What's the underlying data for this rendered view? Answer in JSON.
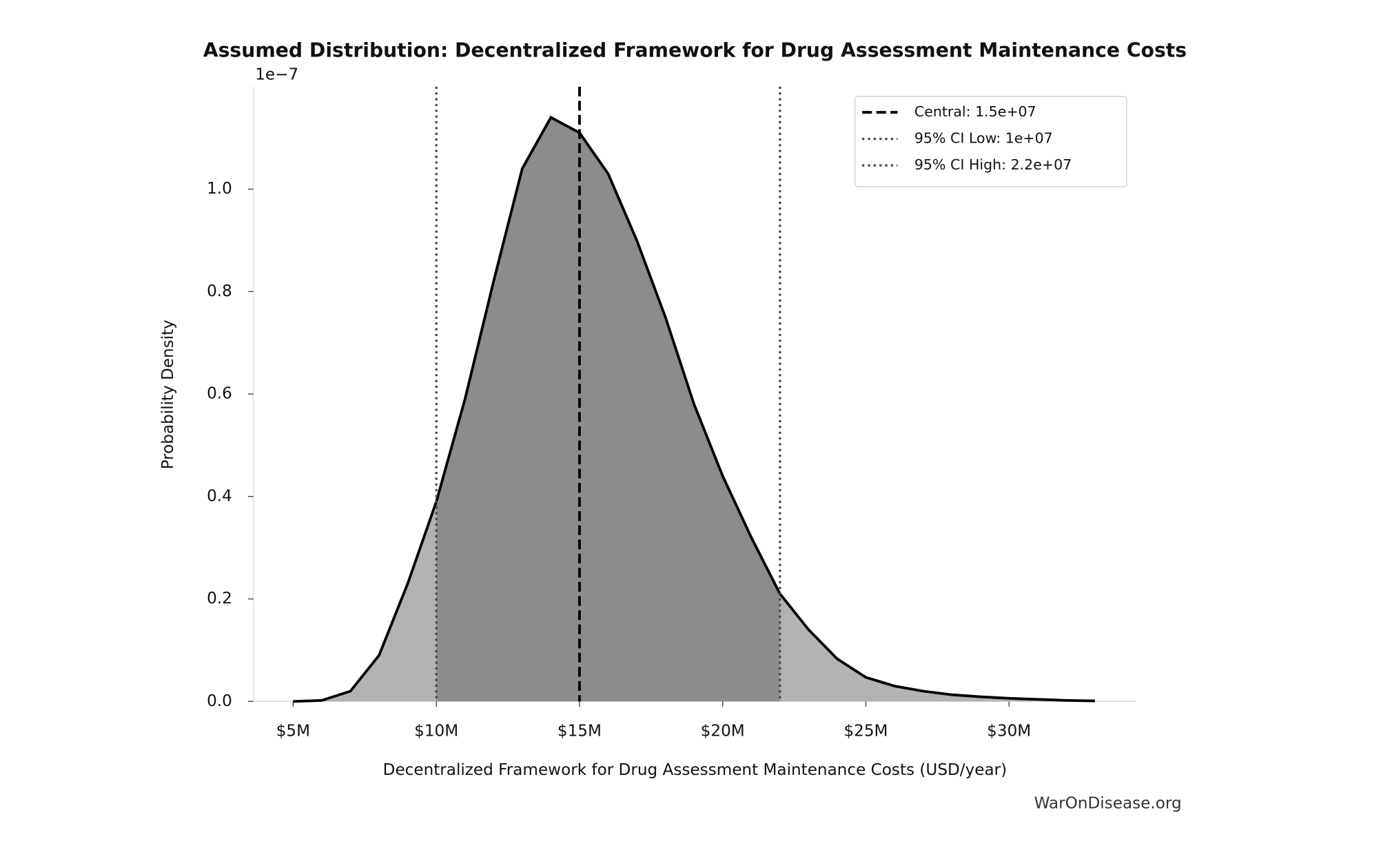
{
  "chart_data": {
    "type": "area",
    "title": "Assumed Distribution: Decentralized Framework for Drug Assessment Maintenance Costs",
    "x_label": "Decentralized Framework for Drug Assessment Maintenance Costs (USD/year)",
    "y_label": "Probability Density",
    "y_offset_label": "1e−7",
    "watermark": "WarOnDisease.org",
    "x": [
      5000000,
      6000000,
      7000000,
      8000000,
      9000000,
      10000000,
      11000000,
      12000000,
      13000000,
      14000000,
      15000000,
      16000000,
      17000000,
      18000000,
      19000000,
      20000000,
      21000000,
      22000000,
      23000000,
      24000000,
      25000000,
      26000000,
      27000000,
      28000000,
      29000000,
      30000000,
      31000000,
      32000000,
      33000000
    ],
    "values": [
      0.0,
      0.002,
      0.02,
      0.09,
      0.23,
      0.39,
      0.59,
      0.82,
      1.04,
      1.14,
      1.11,
      1.03,
      0.9,
      0.75,
      0.58,
      0.44,
      0.32,
      0.21,
      0.14,
      0.083,
      0.047,
      0.03,
      0.02,
      0.013,
      0.009,
      0.006,
      0.004,
      0.002,
      0.001
    ],
    "color": "#000000",
    "fill_color": "#b3b3b3",
    "ci_fill_color": "#8c8c8c",
    "reference_lines": [
      {
        "name": "Central: 1.5e+07",
        "value": 15000000,
        "style": "dashed",
        "color": "#000000"
      },
      {
        "name": "95% CI Low: 1e+07",
        "value": 10000000,
        "style": "dotted",
        "color": "#444444"
      },
      {
        "name": "95% CI High: 2.2e+07",
        "value": 22000000,
        "style": "dotted",
        "color": "#444444"
      }
    ],
    "xlim": [
      3610000,
      34420000
    ],
    "xticks": [
      {
        "value": 5000000,
        "label": "$5M"
      },
      {
        "value": 10000000,
        "label": "$10M"
      },
      {
        "value": 15000000,
        "label": "$15M"
      },
      {
        "value": 20000000,
        "label": "$20M"
      },
      {
        "value": 25000000,
        "label": "$25M"
      },
      {
        "value": 30000000,
        "label": "$30M"
      }
    ],
    "ylim": [
      0,
      1.2
    ],
    "yticks": [
      {
        "value": 0,
        "label": "0.0"
      },
      0.2,
      0.4,
      0.6,
      0.8,
      {
        "value": 1,
        "label": "1.0"
      }
    ],
    "legend": "upper right",
    "grid": false
  }
}
